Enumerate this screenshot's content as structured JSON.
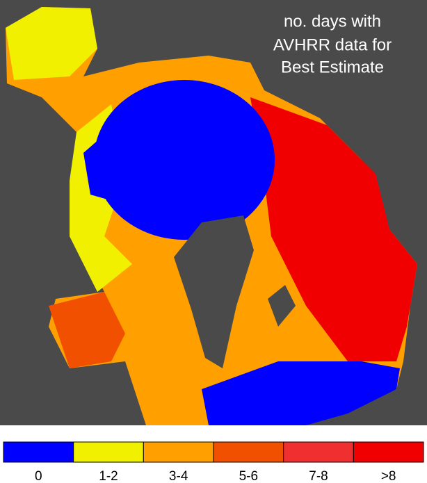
{
  "title": {
    "lines": [
      "no. days with",
      "AVHRR data for",
      "Best Estimate"
    ]
  },
  "legend": {
    "items": [
      {
        "label": "0",
        "color": "#0000ff"
      },
      {
        "label": "1-2",
        "color": "#f0f000"
      },
      {
        "label": "3-4",
        "color": "#ffa000"
      },
      {
        "label": "5-6",
        "color": "#f05000"
      },
      {
        "label": "7-8",
        "color": "#f03030"
      },
      {
        "label": ">8",
        "color": "#f00000"
      }
    ]
  }
}
